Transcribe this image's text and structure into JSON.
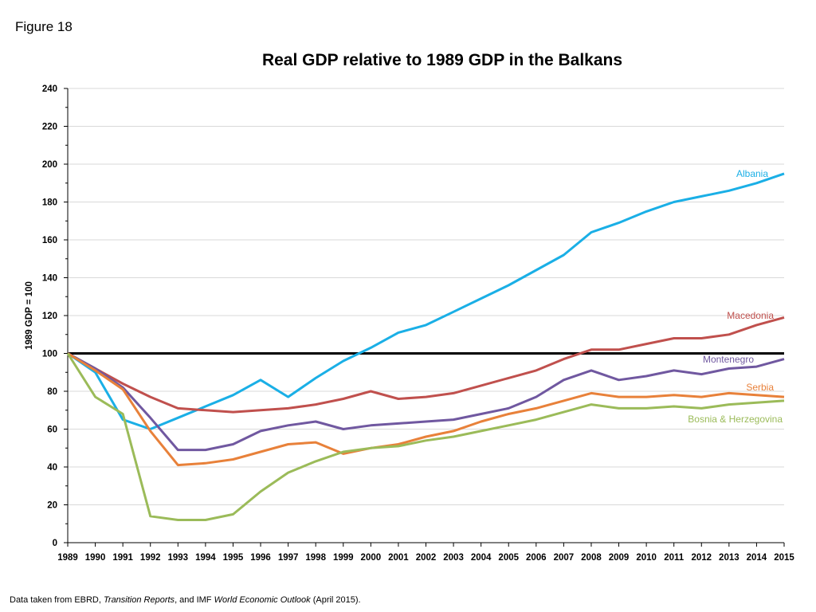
{
  "figure_label": "Figure 18",
  "source_note": {
    "prefix": "Data taken from EBRD, ",
    "italic1": "Transition Reports",
    "middle": ", and IMF ",
    "italic2": "World Economic Outlook",
    "suffix": " (April 2015)."
  },
  "chart_data": {
    "type": "line",
    "title": "Real GDP relative to 1989 GDP in the Balkans",
    "xlabel": "",
    "ylabel": "1989 GDP = 100",
    "ylim": [
      0,
      240
    ],
    "yticks": [
      0,
      20,
      40,
      60,
      80,
      100,
      120,
      140,
      160,
      180,
      200,
      220,
      240
    ],
    "grid": true,
    "reference_line": 100,
    "categories": [
      "1989",
      "1990",
      "1991",
      "1992",
      "1993",
      "1994",
      "1995",
      "1996",
      "1997",
      "1998",
      "1999",
      "2000",
      "2001",
      "2002",
      "2003",
      "2004",
      "2005",
      "2006",
      "2007",
      "2008",
      "2009",
      "2010",
      "2011",
      "2012",
      "2013",
      "2014",
      "2015"
    ],
    "series": [
      {
        "name": "Albania",
        "color": "#1AAFE6",
        "values": [
          100,
          90,
          65,
          60,
          66,
          72,
          78,
          86,
          77,
          87,
          96,
          103,
          111,
          115,
          122,
          129,
          136,
          144,
          152,
          164,
          169,
          175,
          180,
          183,
          186,
          190,
          195
        ]
      },
      {
        "name": "Macedonia",
        "color": "#C0504D",
        "values": [
          100,
          92,
          84,
          77,
          71,
          70,
          69,
          70,
          71,
          73,
          76,
          80,
          76,
          77,
          79,
          83,
          87,
          91,
          97,
          102,
          102,
          105,
          108,
          108,
          110,
          115,
          119
        ]
      },
      {
        "name": "Montenegro",
        "color": "#7058A0",
        "values": [
          100,
          92,
          82,
          66,
          49,
          49,
          52,
          59,
          62,
          64,
          60,
          62,
          63,
          64,
          65,
          68,
          71,
          77,
          86,
          91,
          86,
          88,
          91,
          89,
          92,
          93,
          97
        ]
      },
      {
        "name": "Serbia",
        "color": "#E8813A",
        "values": [
          100,
          91,
          81,
          59,
          41,
          42,
          44,
          48,
          52,
          53,
          47,
          50,
          52,
          56,
          59,
          64,
          68,
          71,
          75,
          79,
          77,
          77,
          78,
          77,
          79,
          78,
          77
        ]
      },
      {
        "name": "Bosnia & Herzegovina",
        "color": "#9BBB59",
        "values": [
          100,
          77,
          68,
          14,
          12,
          12,
          15,
          27,
          37,
          43,
          48,
          50,
          51,
          54,
          56,
          59,
          62,
          65,
          69,
          73,
          71,
          71,
          72,
          71,
          73,
          74,
          75
        ]
      }
    ]
  }
}
